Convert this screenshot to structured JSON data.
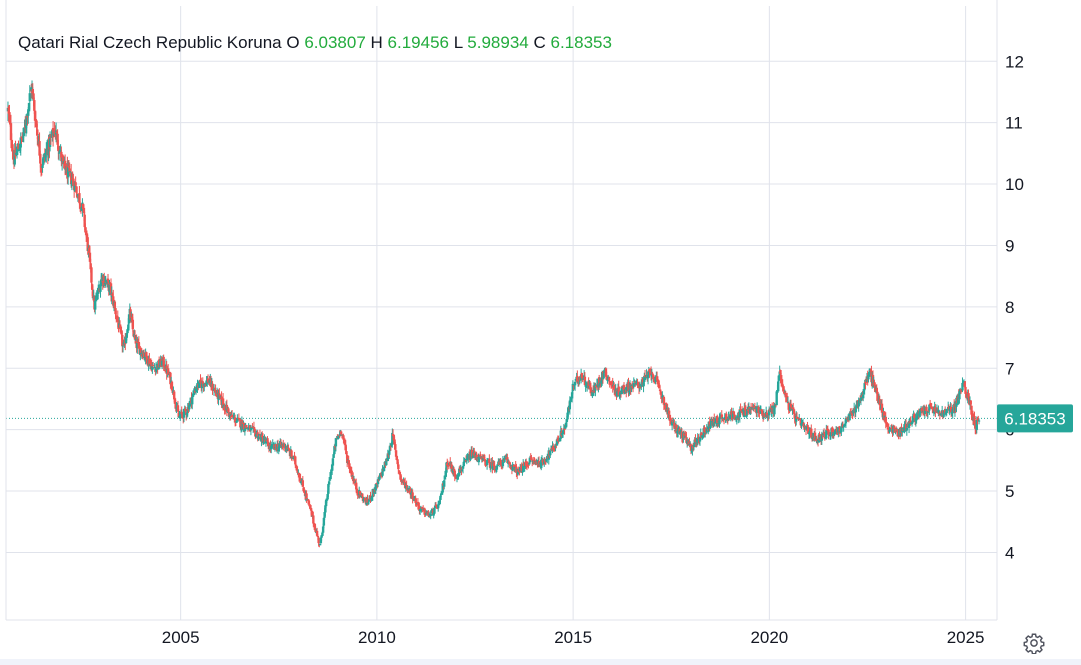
{
  "legend": {
    "title": "Qatari Rial Czech Republic Koruna",
    "o_label": "O",
    "o_value": "6.03807",
    "h_label": "H",
    "h_value": "6.19456",
    "l_label": "L",
    "l_value": "5.98934",
    "c_label": "C",
    "c_value": "6.18353"
  },
  "colors": {
    "up": "#26a69a",
    "down": "#ef5350",
    "grid": "#e0e3eb",
    "price_line": "#26a69a",
    "legend_value": "#22ab3c",
    "price_tag_bg": "#26a69a"
  },
  "settings_icon": "gear-icon",
  "chart_data": {
    "type": "candlestick",
    "title": "Qatari Rial Czech Republic Koruna",
    "y_ticks": [
      "4",
      "5",
      "6",
      "7",
      "8",
      "9",
      "10",
      "11",
      "12"
    ],
    "x_ticks": [
      "2005",
      "2010",
      "2015",
      "2020",
      "2025"
    ],
    "ylim": [
      2.9,
      12.9
    ],
    "xlim": [
      2000.55,
      2025.8
    ],
    "last_price": "6.18353",
    "last_value": 6.18353,
    "grid": true,
    "y_axis_position": "right",
    "close_path": [
      [
        2000.6,
        11.2
      ],
      [
        2000.75,
        10.4
      ],
      [
        2001.0,
        10.8
      ],
      [
        2001.2,
        11.6
      ],
      [
        2001.45,
        10.3
      ],
      [
        2001.8,
        10.9
      ],
      [
        2002.0,
        10.3
      ],
      [
        2002.3,
        10.0
      ],
      [
        2002.5,
        9.6
      ],
      [
        2002.65,
        8.9
      ],
      [
        2002.8,
        8.0
      ],
      [
        2003.0,
        8.5
      ],
      [
        2003.2,
        8.3
      ],
      [
        2003.35,
        7.9
      ],
      [
        2003.55,
        7.3
      ],
      [
        2003.7,
        7.9
      ],
      [
        2003.85,
        7.4
      ],
      [
        2004.1,
        7.2
      ],
      [
        2004.3,
        7.0
      ],
      [
        2004.55,
        7.1
      ],
      [
        2004.75,
        6.8
      ],
      [
        2004.95,
        6.2
      ],
      [
        2005.15,
        6.3
      ],
      [
        2005.4,
        6.7
      ],
      [
        2005.7,
        6.8
      ],
      [
        2006.0,
        6.5
      ],
      [
        2006.3,
        6.2
      ],
      [
        2006.65,
        6.05
      ],
      [
        2007.0,
        5.9
      ],
      [
        2007.3,
        5.7
      ],
      [
        2007.65,
        5.75
      ],
      [
        2007.9,
        5.5
      ],
      [
        2008.1,
        5.1
      ],
      [
        2008.3,
        4.7
      ],
      [
        2008.55,
        4.1
      ],
      [
        2008.75,
        5.0
      ],
      [
        2008.95,
        5.8
      ],
      [
        2009.1,
        6.0
      ],
      [
        2009.25,
        5.5
      ],
      [
        2009.5,
        5.0
      ],
      [
        2009.75,
        4.8
      ],
      [
        2010.0,
        5.1
      ],
      [
        2010.25,
        5.5
      ],
      [
        2010.4,
        5.9
      ],
      [
        2010.6,
        5.2
      ],
      [
        2010.85,
        5.0
      ],
      [
        2011.1,
        4.7
      ],
      [
        2011.35,
        4.6
      ],
      [
        2011.6,
        4.8
      ],
      [
        2011.8,
        5.5
      ],
      [
        2012.0,
        5.25
      ],
      [
        2012.2,
        5.4
      ],
      [
        2012.4,
        5.6
      ],
      [
        2012.7,
        5.5
      ],
      [
        2013.0,
        5.4
      ],
      [
        2013.3,
        5.5
      ],
      [
        2013.6,
        5.3
      ],
      [
        2013.9,
        5.5
      ],
      [
        2014.2,
        5.45
      ],
      [
        2014.5,
        5.7
      ],
      [
        2014.8,
        6.05
      ],
      [
        2015.0,
        6.7
      ],
      [
        2015.2,
        6.9
      ],
      [
        2015.5,
        6.6
      ],
      [
        2015.8,
        6.95
      ],
      [
        2016.1,
        6.6
      ],
      [
        2016.4,
        6.7
      ],
      [
        2016.75,
        6.75
      ],
      [
        2017.0,
        6.95
      ],
      [
        2017.3,
        6.5
      ],
      [
        2017.5,
        6.1
      ],
      [
        2017.8,
        5.9
      ],
      [
        2018.0,
        5.7
      ],
      [
        2018.25,
        5.9
      ],
      [
        2018.5,
        6.1
      ],
      [
        2018.8,
        6.2
      ],
      [
        2019.2,
        6.25
      ],
      [
        2019.6,
        6.35
      ],
      [
        2019.9,
        6.25
      ],
      [
        2020.15,
        6.35
      ],
      [
        2020.25,
        6.95
      ],
      [
        2020.45,
        6.45
      ],
      [
        2020.7,
        6.15
      ],
      [
        2020.95,
        6.0
      ],
      [
        2021.2,
        5.85
      ],
      [
        2021.5,
        5.95
      ],
      [
        2021.8,
        6.0
      ],
      [
        2022.1,
        6.25
      ],
      [
        2022.35,
        6.55
      ],
      [
        2022.55,
        6.95
      ],
      [
        2022.8,
        6.45
      ],
      [
        2023.0,
        6.05
      ],
      [
        2023.3,
        5.95
      ],
      [
        2023.55,
        6.1
      ],
      [
        2023.8,
        6.25
      ],
      [
        2024.1,
        6.35
      ],
      [
        2024.4,
        6.25
      ],
      [
        2024.7,
        6.35
      ],
      [
        2024.95,
        6.75
      ],
      [
        2025.1,
        6.45
      ],
      [
        2025.25,
        6.05
      ],
      [
        2025.35,
        6.18353
      ]
    ]
  }
}
